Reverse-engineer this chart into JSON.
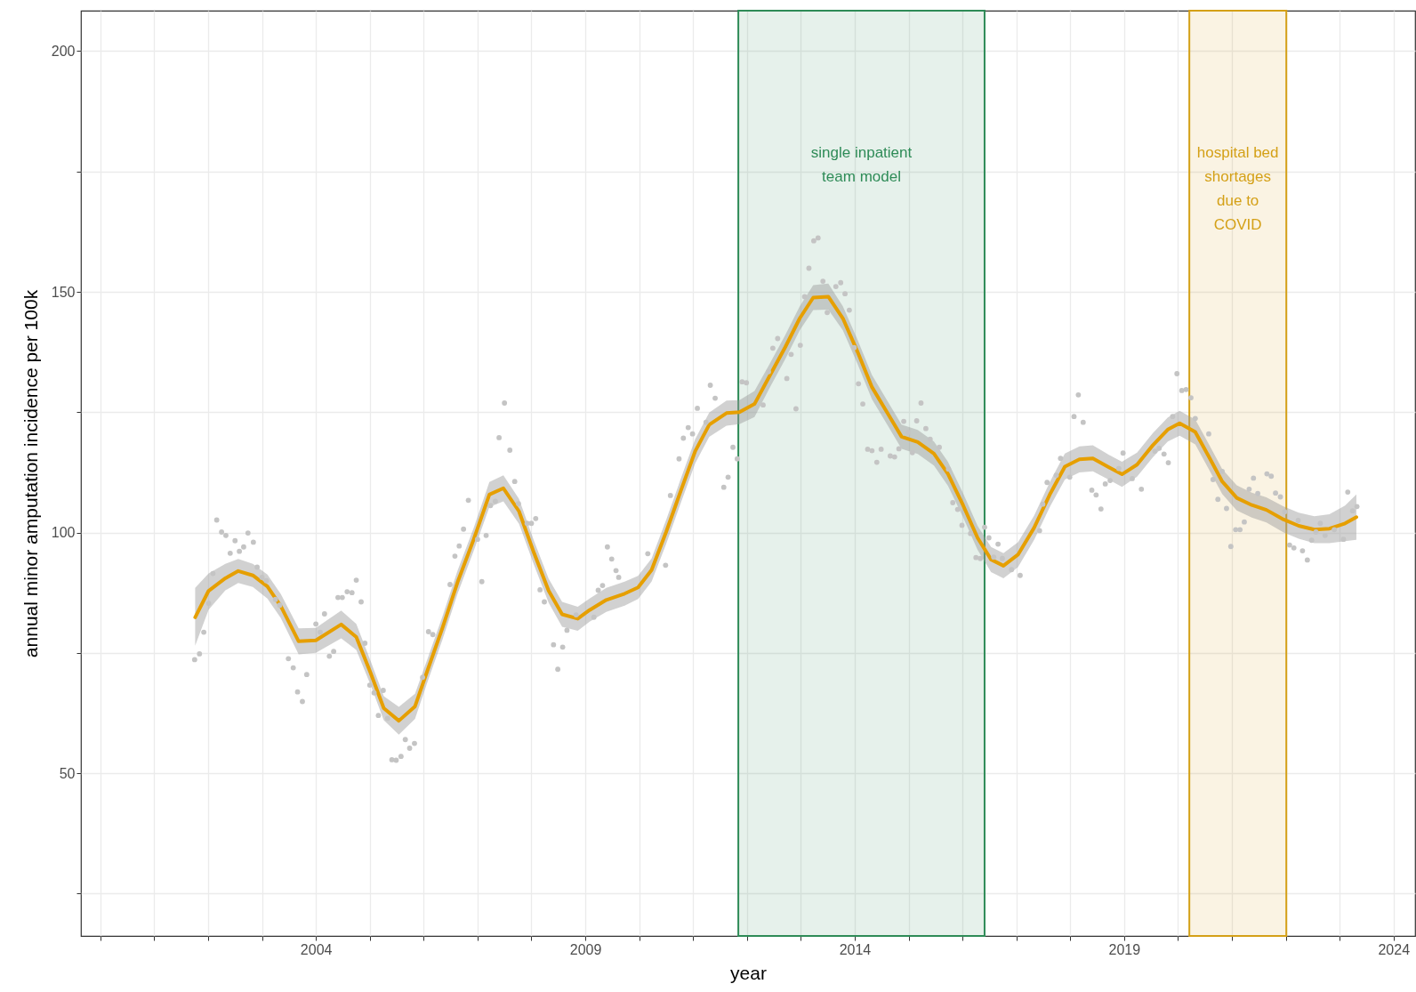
{
  "chart_data": {
    "type": "line",
    "xlabel": "year",
    "ylabel": "annual minor amputation incidence per 100k",
    "xlim": [
      1999.64,
      2024.4
    ],
    "xticks": [
      {
        "value": 2000,
        "label": null
      },
      {
        "value": 2001,
        "label": null
      },
      {
        "value": 2002,
        "label": null
      },
      {
        "value": 2003,
        "label": null
      },
      2004,
      {
        "value": 2005,
        "label": null
      },
      {
        "value": 2006,
        "label": null
      },
      {
        "value": 2007,
        "label": null
      },
      {
        "value": 2008,
        "label": null
      },
      2009,
      {
        "value": 2010,
        "label": null
      },
      {
        "value": 2011,
        "label": null
      },
      {
        "value": 2012,
        "label": null
      },
      {
        "value": 2013,
        "label": null
      },
      2014,
      {
        "value": 2015,
        "label": null
      },
      {
        "value": 2016,
        "label": null
      },
      {
        "value": 2017,
        "label": null
      },
      {
        "value": 2018,
        "label": null
      },
      2019,
      {
        "value": 2020,
        "label": null
      },
      {
        "value": 2021,
        "label": null
      },
      {
        "value": 2022,
        "label": null
      },
      {
        "value": 2023,
        "label": null
      },
      2024
    ],
    "ylim": [
      16.2,
      208.4
    ],
    "yticks": [
      {
        "value": 25,
        "label": null
      },
      50,
      {
        "value": 75,
        "label": null
      },
      100,
      {
        "value": 125,
        "label": null
      },
      150,
      {
        "value": 175,
        "label": null
      },
      200
    ],
    "grid": true,
    "bands": [
      {
        "axis": "x",
        "from": 2011.84,
        "to": 2016.41,
        "label": "single inpatient\nteam model",
        "color": "#2e8b57"
      },
      {
        "axis": "x",
        "from": 2020.21,
        "to": 2022.01,
        "label": "hospital bed\nshortages\ndue to\nCOVID",
        "color": "#d4a017"
      }
    ],
    "series": [
      {
        "type": "scatter",
        "color": "#c4c4c4",
        "x": [
          2001.75,
          2001.84,
          2001.92,
          2002.01,
          2002.09,
          2002.16,
          2002.25,
          2002.33,
          2002.41,
          2002.5,
          2002.58,
          2002.66,
          2002.74,
          2002.84,
          2002.91,
          2003.0,
          2003.08,
          2003.25,
          2003.33,
          2003.49,
          2003.58,
          2003.66,
          2003.75,
          2003.83,
          2004.0,
          2004.08,
          2004.16,
          2004.25,
          2004.33,
          2004.41,
          2004.49,
          2004.58,
          2004.67,
          2004.75,
          2004.84,
          2004.91,
          2005.0,
          2005.08,
          2005.16,
          2005.25,
          2005.33,
          2005.41,
          2005.49,
          2005.58,
          2005.66,
          2005.74,
          2005.83,
          2005.98,
          2006.09,
          2006.17,
          2006.49,
          2006.58,
          2006.66,
          2006.74,
          2006.83,
          2007.0,
          2007.08,
          2007.16,
          2007.24,
          2007.33,
          2007.4,
          2007.5,
          2007.6,
          2007.69,
          2007.76,
          2007.92,
          2008.0,
          2008.08,
          2008.16,
          2008.24,
          2008.41,
          2008.49,
          2008.58,
          2008.66,
          2008.83,
          2009.16,
          2009.24,
          2009.32,
          2009.41,
          2009.49,
          2009.57,
          2009.62,
          2010.16,
          2010.49,
          2010.58,
          2010.74,
          2010.82,
          2010.91,
          2010.99,
          2011.08,
          2011.24,
          2011.32,
          2011.41,
          2011.57,
          2011.65,
          2011.74,
          2011.82,
          2011.91,
          2011.99,
          2012.3,
          2012.4,
          2012.48,
          2012.57,
          2012.74,
          2012.82,
          2012.91,
          2012.99,
          2013.07,
          2013.15,
          2013.24,
          2013.32,
          2013.41,
          2013.49,
          2013.65,
          2013.74,
          2013.82,
          2013.9,
          2013.99,
          2014.07,
          2014.15,
          2014.24,
          2014.32,
          2014.41,
          2014.49,
          2014.66,
          2014.74,
          2014.82,
          2014.91,
          2014.99,
          2015.07,
          2015.15,
          2015.23,
          2015.32,
          2015.4,
          2015.57,
          2015.74,
          2015.82,
          2015.91,
          2015.99,
          2016.15,
          2016.25,
          2016.33,
          2016.41,
          2016.49,
          2016.58,
          2016.66,
          2016.74,
          2016.91,
          2017.07,
          2017.43,
          2017.49,
          2017.57,
          2017.74,
          2017.82,
          2017.99,
          2018.07,
          2018.15,
          2018.24,
          2018.4,
          2018.48,
          2018.57,
          2018.65,
          2018.74,
          2018.9,
          2018.98,
          2019.15,
          2019.32,
          2019.57,
          2019.65,
          2019.74,
          2019.82,
          2019.9,
          2019.98,
          2020.07,
          2020.15,
          2020.24,
          2020.32,
          2020.57,
          2020.65,
          2020.74,
          2020.82,
          2020.9,
          2020.98,
          2021.07,
          2021.15,
          2021.23,
          2021.32,
          2021.4,
          2021.48,
          2021.65,
          2021.73,
          2021.81,
          2021.9,
          2021.98,
          2022.07,
          2022.15,
          2022.23,
          2022.31,
          2022.4,
          2022.48,
          2022.56,
          2022.64,
          2022.73,
          2022.9,
          2023.07,
          2023.15,
          2023.24,
          2023.32
        ],
        "values": [
          73.6,
          74.8,
          79.3,
          85.3,
          91.5,
          102.6,
          100.1,
          99.4,
          95.7,
          98.3,
          96.1,
          97.0,
          99.9,
          98.0,
          92.8,
          90.7,
          90.0,
          86.1,
          84.9,
          73.8,
          71.9,
          66.9,
          64.9,
          70.5,
          81.0,
          79.3,
          83.1,
          74.3,
          75.3,
          86.5,
          86.5,
          87.7,
          87.5,
          90.1,
          85.6,
          77.0,
          68.3,
          66.7,
          62.0,
          67.2,
          61.4,
          52.8,
          52.7,
          53.5,
          57.0,
          55.2,
          56.2,
          69.9,
          79.4,
          78.8,
          89.2,
          95.1,
          97.2,
          100.7,
          106.7,
          98.6,
          89.8,
          99.4,
          105.6,
          106.5,
          119.7,
          126.9,
          117.1,
          110.6,
          106.0,
          101.9,
          101.9,
          102.9,
          88.1,
          85.6,
          76.7,
          71.6,
          76.2,
          79.7,
          82.9,
          82.4,
          88.0,
          89.0,
          97.0,
          94.5,
          92.1,
          90.7,
          95.6,
          93.2,
          107.7,
          115.3,
          119.6,
          121.8,
          120.5,
          125.8,
          122.9,
          130.6,
          127.9,
          109.4,
          111.5,
          117.7,
          115.3,
          131.3,
          131.1,
          126.5,
          133.4,
          138.3,
          140.3,
          132.0,
          137.0,
          125.7,
          138.9,
          149.0,
          154.9,
          160.6,
          161.2,
          152.2,
          145.7,
          151.1,
          151.9,
          149.6,
          146.2,
          138.4,
          130.9,
          126.7,
          117.3,
          117.0,
          114.6,
          117.3,
          115.9,
          115.7,
          117.4,
          123.1,
          120.8,
          116.6,
          123.2,
          126.9,
          121.6,
          119.4,
          117.7,
          113.2,
          106.2,
          104.8,
          101.5,
          99.8,
          94.8,
          94.6,
          101.1,
          98.9,
          94.9,
          97.6,
          94.6,
          92.3,
          91.1,
          100.4,
          105.9,
          110.4,
          111.9,
          115.4,
          111.5,
          124.1,
          128.6,
          122.9,
          108.8,
          107.8,
          104.9,
          110.1,
          110.8,
          113.3,
          116.5,
          111.2,
          109.0,
          116.9,
          117.5,
          116.3,
          114.5,
          124.1,
          133.0,
          129.5,
          129.7,
          128.0,
          123.7,
          120.5,
          111.0,
          106.9,
          112.7,
          105.0,
          97.1,
          100.6,
          100.6,
          102.2,
          109.0,
          111.3,
          108.1,
          112.2,
          111.7,
          108.2,
          107.4,
          104.3,
          97.4,
          96.8,
          102.5,
          96.2,
          94.3,
          98.4,
          100.1,
          101.9,
          99.4,
          100.6,
          98.6,
          108.4,
          104.5,
          105.4
        ]
      },
      {
        "type": "line",
        "color": "#e69f00",
        "x": [
          2001.76,
          2002.01,
          2002.32,
          2002.56,
          2002.83,
          2003.1,
          2003.35,
          2003.68,
          2004.0,
          2004.47,
          2004.75,
          2005.01,
          2005.26,
          2005.54,
          2005.84,
          2006.06,
          2006.35,
          2006.63,
          2006.93,
          2007.22,
          2007.48,
          2007.77,
          2008.05,
          2008.32,
          2008.57,
          2008.86,
          2009.08,
          2009.39,
          2009.73,
          2009.98,
          2010.23,
          2010.5,
          2010.78,
          2011.04,
          2011.3,
          2011.62,
          2011.86,
          2012.14,
          2012.41,
          2012.71,
          2012.98,
          2013.23,
          2013.51,
          2013.78,
          2014.05,
          2014.32,
          2014.62,
          2014.87,
          2015.17,
          2015.47,
          2015.73,
          2016.01,
          2016.28,
          2016.53,
          2016.76,
          2017.03,
          2017.33,
          2017.63,
          2017.9,
          2018.17,
          2018.42,
          2018.71,
          2018.96,
          2019.24,
          2019.53,
          2019.81,
          2020.03,
          2020.32,
          2020.57,
          2020.82,
          2021.09,
          2021.37,
          2021.64,
          2021.96,
          2022.24,
          2022.53,
          2022.81,
          2023.1,
          2023.31
        ],
        "values": [
          82.4,
          87.9,
          90.5,
          92.0,
          91.1,
          88.8,
          84.7,
          77.4,
          77.6,
          80.9,
          78.3,
          71,
          63.5,
          60.9,
          63.9,
          71,
          80.2,
          89.7,
          98.6,
          107.9,
          109.2,
          104.4,
          95.7,
          87.9,
          83,
          82.1,
          83.9,
          86,
          87.3,
          88.6,
          92.2,
          100.1,
          108.9,
          116.9,
          122.4,
          124.8,
          125,
          126.7,
          132.3,
          138.5,
          144.5,
          148.8,
          149,
          144.5,
          137.6,
          130.2,
          124.6,
          119.9,
          118.8,
          116.4,
          112.2,
          105.7,
          98.9,
          94.4,
          93.1,
          95.4,
          101,
          108.1,
          113.7,
          115.2,
          115.4,
          113.6,
          112.1,
          114.1,
          118.1,
          121.4,
          122.7,
          120.9,
          115.8,
          110.6,
          107.2,
          105.7,
          104.7,
          102.7,
          101.4,
          100.6,
          100.8,
          101.9,
          103.2
        ],
        "lower": [
          76.5,
          84,
          88,
          89.5,
          88.7,
          86.3,
          82.2,
          74.7,
          75,
          78,
          75.6,
          68.5,
          61,
          58,
          61.3,
          68.6,
          77.8,
          87.3,
          96.2,
          105.3,
          106.5,
          101.8,
          93.2,
          85.4,
          80.4,
          79.6,
          81.5,
          83.5,
          84.8,
          86.2,
          89.8,
          97.6,
          106.4,
          114.4,
          119.9,
          122.2,
          122.5,
          124,
          129.8,
          136,
          142,
          146.2,
          146.3,
          142,
          135.1,
          127.7,
          122.1,
          117.4,
          116.3,
          113.9,
          109.7,
          103.2,
          96.4,
          91.8,
          90.5,
          92.8,
          98.5,
          105.5,
          111,
          112.5,
          112.7,
          111,
          109.5,
          111.6,
          115.6,
          118.9,
          120.1,
          118.3,
          113.2,
          108,
          104.6,
          103.1,
          102.1,
          100,
          98.7,
          97.8,
          97.8,
          98.2,
          98.5
        ],
        "upper": [
          88.5,
          91.5,
          93.5,
          94.5,
          93.5,
          91.3,
          87.2,
          80.1,
          80.2,
          83.8,
          81,
          73.5,
          66,
          63.8,
          66.5,
          73.4,
          82.6,
          92.1,
          101,
          110.5,
          111.9,
          107,
          98.2,
          90.4,
          85.6,
          84.6,
          86.3,
          88.5,
          89.8,
          91,
          94.6,
          102.6,
          111.4,
          119.4,
          124.9,
          127.4,
          127.5,
          129.4,
          134.8,
          141,
          147,
          151.4,
          151.7,
          147,
          140.1,
          132.7,
          127.1,
          122.4,
          121.3,
          118.9,
          114.7,
          108.2,
          101.4,
          97,
          95.7,
          98,
          103.5,
          110.7,
          116.4,
          117.9,
          118.1,
          116.2,
          114.7,
          116.6,
          120.6,
          123.9,
          125.3,
          123.5,
          118.4,
          113.2,
          109.8,
          108.3,
          107.3,
          105.4,
          104.1,
          103.4,
          103.8,
          105.6,
          107.9
        ]
      }
    ]
  }
}
